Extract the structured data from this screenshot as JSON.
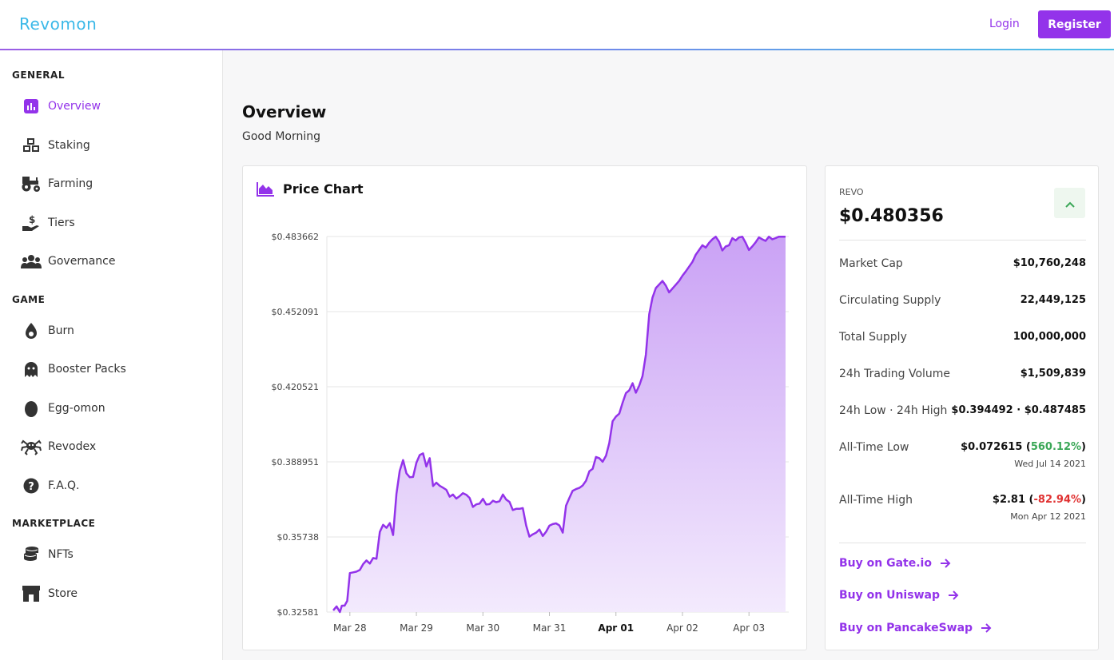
{
  "header": {
    "logo": "Revomon",
    "login_label": "Login",
    "register_label": "Register"
  },
  "sidebar": {
    "sections": [
      {
        "title": "GENERAL",
        "items": [
          {
            "label": "Overview",
            "icon": "bar-chart-icon",
            "active": true
          },
          {
            "label": "Staking",
            "icon": "cubes-icon"
          },
          {
            "label": "Farming",
            "icon": "tractor-icon"
          },
          {
            "label": "Tiers",
            "icon": "hand-dollar-icon"
          },
          {
            "label": "Governance",
            "icon": "users-icon"
          }
        ]
      },
      {
        "title": "GAME",
        "items": [
          {
            "label": "Burn",
            "icon": "flame-icon"
          },
          {
            "label": "Booster Packs",
            "icon": "ghost-icon"
          },
          {
            "label": "Egg-omon",
            "icon": "egg-icon"
          },
          {
            "label": "Revodex",
            "icon": "spider-icon"
          },
          {
            "label": "F.A.Q.",
            "icon": "question-circle-icon"
          }
        ]
      },
      {
        "title": "MARKETPLACE",
        "items": [
          {
            "label": "NFTs",
            "icon": "coins-icon"
          },
          {
            "label": "Store",
            "icon": "store-icon"
          }
        ]
      }
    ]
  },
  "main": {
    "title": "Overview",
    "greeting": "Good Morning"
  },
  "chart_card": {
    "title": "Price Chart"
  },
  "chart_data": {
    "type": "area",
    "title": "Price Chart",
    "xlabel": "",
    "ylabel": "",
    "ylim": [
      0.32581,
      0.483662
    ],
    "y_ticks": [
      "$0.483662",
      "$0.452091",
      "$0.420521",
      "$0.388951",
      "$0.35738",
      "$0.32581"
    ],
    "y_tick_values": [
      0.483662,
      0.452091,
      0.420521,
      0.388951,
      0.35738,
      0.32581
    ],
    "x_ticks": [
      "Mar 28",
      "Mar 29",
      "Mar 30",
      "Mar 31",
      "Apr 01",
      "Apr 02",
      "Apr 03"
    ],
    "x_tick_bold": "Apr 01",
    "xlim": [
      -0.25,
      6.55
    ],
    "colors": {
      "line": "#9333ea",
      "fill_top": "#caa2f5",
      "fill_bottom": "#f3eafd",
      "grid": "#e6e6e6"
    },
    "series": [
      {
        "x": [
          -0.25,
          -0.2,
          -0.15,
          -0.12,
          -0.08,
          -0.04,
          0,
          0.05,
          0.1,
          0.15,
          0.2,
          0.25,
          0.3,
          0.35,
          0.4,
          0.45,
          0.5,
          0.55,
          0.6,
          0.65,
          0.7,
          0.75,
          0.8,
          0.85,
          0.9,
          0.95,
          1.0,
          1.05,
          1.1,
          1.15,
          1.2,
          1.25,
          1.3,
          1.35,
          1.4,
          1.45,
          1.5,
          1.55,
          1.6,
          1.65,
          1.7,
          1.75,
          1.8,
          1.85,
          1.9,
          1.95,
          2.0,
          2.05,
          2.1,
          2.15,
          2.2,
          2.25,
          2.3,
          2.35,
          2.4,
          2.45,
          2.5,
          2.55,
          2.6,
          2.65,
          2.7,
          2.75,
          2.8,
          2.85,
          2.9,
          2.95,
          3.0,
          3.05,
          3.1,
          3.15,
          3.2,
          3.25,
          3.3,
          3.35,
          3.4,
          3.45,
          3.5,
          3.55,
          3.6,
          3.65,
          3.7,
          3.75,
          3.8,
          3.85,
          3.9,
          3.95,
          4.0,
          4.05,
          4.1,
          4.15,
          4.2,
          4.25,
          4.3,
          4.35,
          4.4,
          4.45,
          4.5,
          4.55,
          4.6,
          4.65,
          4.7,
          4.75,
          4.8,
          4.85,
          4.9,
          4.95,
          5.0,
          5.05,
          5.1,
          5.15,
          5.2,
          5.25,
          5.3,
          5.35,
          5.4,
          5.45,
          5.5,
          5.55,
          5.6,
          5.65,
          5.7,
          5.75,
          5.8,
          5.85,
          5.9,
          5.95,
          6.0,
          6.05,
          6.1,
          6.15,
          6.2,
          6.25,
          6.3,
          6.35,
          6.4,
          6.45,
          6.5,
          6.55
        ],
        "values": [
          0.3265,
          0.3282,
          0.3258,
          0.3285,
          0.3285,
          0.3305,
          0.3422,
          0.3425,
          0.3428,
          0.3435,
          0.346,
          0.3475,
          0.3462,
          0.3485,
          0.3482,
          0.3595,
          0.3625,
          0.3612,
          0.3632,
          0.3582,
          0.3755,
          0.3852,
          0.3897,
          0.3841,
          0.3825,
          0.3826,
          0.3885,
          0.3918,
          0.3925,
          0.387,
          0.3905,
          0.3788,
          0.3802,
          0.3789,
          0.3781,
          0.3772,
          0.3743,
          0.3752,
          0.3735,
          0.3745,
          0.3758,
          0.3751,
          0.3738,
          0.37,
          0.3711,
          0.3714,
          0.3734,
          0.371,
          0.3712,
          0.3726,
          0.372,
          0.3724,
          0.3752,
          0.3731,
          0.3721,
          0.3687,
          0.3692,
          0.3692,
          0.3695,
          0.3622,
          0.3575,
          0.3585,
          0.3592,
          0.3605,
          0.3578,
          0.3596,
          0.3621,
          0.3628,
          0.3631,
          0.3622,
          0.3592,
          0.3705,
          0.3738,
          0.3768,
          0.3775,
          0.378,
          0.379,
          0.381,
          0.385,
          0.386,
          0.391,
          0.3905,
          0.389,
          0.3915,
          0.3968,
          0.406,
          0.408,
          0.4092,
          0.4138,
          0.4178,
          0.419,
          0.422,
          0.418,
          0.421,
          0.425,
          0.434,
          0.451,
          0.458,
          0.462,
          0.4635,
          0.465,
          0.463,
          0.4602,
          0.4618,
          0.4634,
          0.465,
          0.4672,
          0.469,
          0.471,
          0.473,
          0.476,
          0.478,
          0.48,
          0.479,
          0.481,
          0.4825,
          0.4836,
          0.4815,
          0.4778,
          0.4795,
          0.48,
          0.483,
          0.482,
          0.4833,
          0.4836,
          0.481,
          0.478,
          0.4795,
          0.4812,
          0.4833,
          0.4825,
          0.4818,
          0.4836,
          0.4825,
          0.483,
          0.4836,
          0.4836,
          0.4836
        ]
      }
    ]
  },
  "stats": {
    "token": "REVO",
    "price": "$0.480356",
    "rows": [
      {
        "label": "Market Cap",
        "value": "$10,760,248"
      },
      {
        "label": "Circulating Supply",
        "value": "22,449,125"
      },
      {
        "label": "Total Supply",
        "value": "100,000,000"
      },
      {
        "label": "24h Trading Volume",
        "value": "$1,509,839"
      },
      {
        "label": "24h Low · 24h High",
        "value": "$0.394492 · $0.487485"
      }
    ],
    "atl": {
      "label": "All-Time Low",
      "value": "$0.072615",
      "change": "560.12%",
      "date": "Wed Jul 14 2021"
    },
    "ath": {
      "label": "All-Time High",
      "value": "$2.81",
      "change": "-82.94%",
      "date": "Mon Apr 12 2021"
    },
    "buy_links": [
      "Buy on Gate.io",
      "Buy on Uniswap",
      "Buy on PancakeSwap"
    ]
  }
}
